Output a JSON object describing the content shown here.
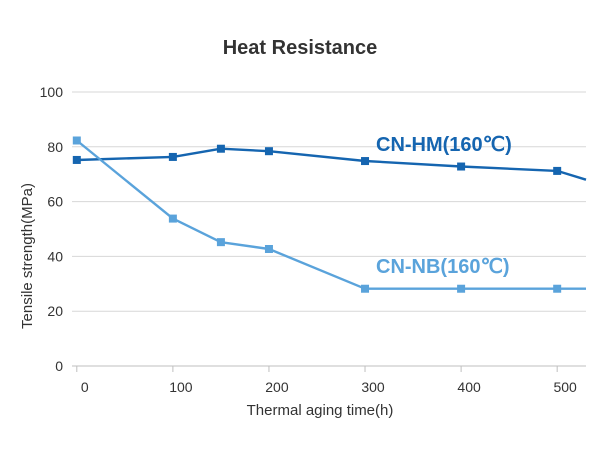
{
  "chart_data": {
    "type": "line",
    "title": "Heat Resistance",
    "xlabel": "Thermal aging time(h)",
    "ylabel": "Tensile strength(MPa)",
    "xlim": [
      -5,
      530
    ],
    "ylim": [
      0,
      100
    ],
    "x_ticks": [
      "0",
      "100",
      "200",
      "300",
      "400",
      "500"
    ],
    "y_ticks": [
      "0",
      "20",
      "40",
      "60",
      "80",
      "100"
    ],
    "grid": true,
    "series": [
      {
        "name": "CN-HM(160℃)",
        "color": "#1565b0",
        "x": [
          0,
          100,
          150,
          200,
          300,
          400,
          500
        ],
        "y": [
          75.2,
          76.3,
          79.3,
          78.4,
          74.8,
          72.8,
          71.2
        ],
        "continuation": [
          530,
          68.0
        ]
      },
      {
        "name": "CN-NB(160℃)",
        "color": "#5aa3db",
        "x": [
          0,
          100,
          150,
          200,
          300,
          400,
          500
        ],
        "y": [
          82.3,
          53.8,
          45.2,
          42.7,
          28.2,
          28.2,
          28.2
        ],
        "continuation": [
          530,
          28.2
        ]
      }
    ]
  }
}
